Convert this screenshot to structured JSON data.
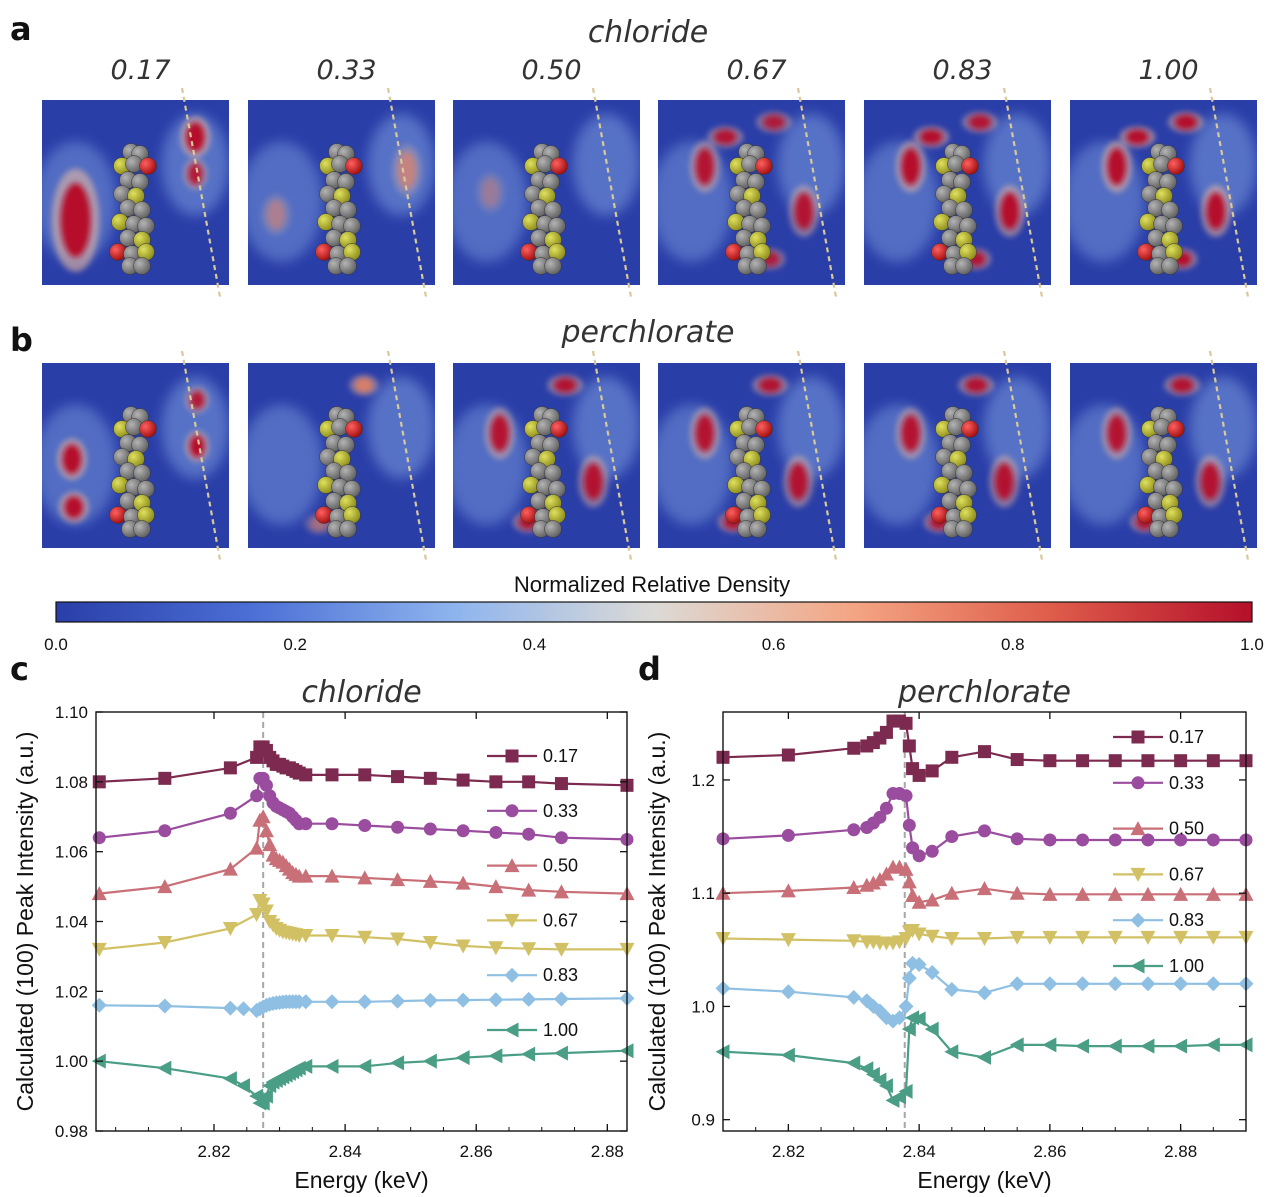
{
  "panel_labels": {
    "a": "a",
    "b": "b",
    "c": "c",
    "d": "d"
  },
  "density_rows": [
    {
      "title": "chloride",
      "columns": [
        "0.17",
        "0.33",
        "0.50",
        "0.67",
        "0.83",
        "1.00"
      ]
    },
    {
      "title": "perchlorate",
      "columns": [
        "0.17",
        "0.33",
        "0.50",
        "0.67",
        "0.83",
        "1.00"
      ]
    }
  ],
  "colorbar": {
    "title": "Normalized Relative Density",
    "ticks": [
      "0.0",
      "0.2",
      "0.4",
      "0.6",
      "0.8",
      "1.0"
    ],
    "colors": [
      "#2a3ea8",
      "#4c70d6",
      "#8eb4ee",
      "#dcdad6",
      "#f4a583",
      "#de5c4a",
      "#b5102a"
    ]
  },
  "molecule_colors": {
    "carbon": "#7a7a7a",
    "sulfur": "#b8b830",
    "oxygen": "#c01818"
  },
  "colors": {
    "map_background": "#2a3ea8",
    "divider": "#d8c89a",
    "series": [
      "#7c2a4f",
      "#9a4c9e",
      "#c96f77",
      "#d2c164",
      "#8fc0e3",
      "#4a9e86"
    ]
  },
  "chart_data": [
    {
      "type": "line",
      "title": "chloride",
      "xlabel": "Energy (keV)",
      "ylabel": "Calculated (100) Peak Intensity (a.u.)",
      "xlim": [
        2.802,
        2.883
      ],
      "ylim": [
        0.98,
        1.1
      ],
      "xticks": [
        "2.82",
        "2.84",
        "2.86",
        "2.88"
      ],
      "yticks": [
        "0.98",
        "1.00",
        "1.02",
        "1.04",
        "1.06",
        "1.08",
        "1.10"
      ],
      "vline": 2.8275,
      "series": [
        {
          "name": "0.17",
          "marker": "square",
          "x": [
            2.8025,
            2.8125,
            2.8225,
            2.8265,
            2.827,
            2.8275,
            2.828,
            2.8285,
            2.829,
            2.8295,
            2.83,
            2.8305,
            2.831,
            2.8315,
            2.832,
            2.8325,
            2.833,
            2.834,
            2.838,
            2.843,
            2.848,
            2.853,
            2.858,
            2.863,
            2.868,
            2.873,
            2.883
          ],
          "y": [
            1.08,
            1.081,
            1.084,
            1.087,
            1.09,
            1.09,
            1.089,
            1.087,
            1.086,
            1.085,
            1.085,
            1.0845,
            1.084,
            1.084,
            1.0835,
            1.083,
            1.0825,
            1.082,
            1.082,
            1.082,
            1.0815,
            1.081,
            1.0805,
            1.08,
            1.08,
            1.0795,
            1.079
          ]
        },
        {
          "name": "0.33",
          "marker": "circle",
          "x": [
            2.8025,
            2.8125,
            2.8225,
            2.8265,
            2.827,
            2.8275,
            2.828,
            2.8285,
            2.829,
            2.8295,
            2.83,
            2.8305,
            2.831,
            2.8315,
            2.832,
            2.8325,
            2.833,
            2.834,
            2.838,
            2.843,
            2.848,
            2.853,
            2.858,
            2.863,
            2.868,
            2.873,
            2.883
          ],
          "y": [
            1.064,
            1.066,
            1.071,
            1.076,
            1.081,
            1.081,
            1.079,
            1.076,
            1.074,
            1.073,
            1.0725,
            1.072,
            1.0715,
            1.071,
            1.07,
            1.069,
            1.068,
            1.068,
            1.068,
            1.0675,
            1.067,
            1.0665,
            1.066,
            1.0655,
            1.065,
            1.064,
            1.0635
          ]
        },
        {
          "name": "0.50",
          "marker": "triangle-up",
          "x": [
            2.8025,
            2.8125,
            2.8225,
            2.8265,
            2.827,
            2.8275,
            2.828,
            2.8285,
            2.829,
            2.8295,
            2.83,
            2.8305,
            2.831,
            2.8315,
            2.832,
            2.8325,
            2.833,
            2.834,
            2.838,
            2.843,
            2.848,
            2.853,
            2.858,
            2.863,
            2.868,
            2.873,
            2.883
          ],
          "y": [
            1.048,
            1.05,
            1.055,
            1.061,
            1.069,
            1.07,
            1.066,
            1.062,
            1.059,
            1.058,
            1.0575,
            1.057,
            1.056,
            1.055,
            1.054,
            1.0535,
            1.053,
            1.053,
            1.053,
            1.0525,
            1.052,
            1.0515,
            1.051,
            1.05,
            1.049,
            1.0485,
            1.048
          ]
        },
        {
          "name": "0.67",
          "marker": "triangle-down",
          "x": [
            2.8025,
            2.8125,
            2.8225,
            2.8265,
            2.827,
            2.8275,
            2.828,
            2.8285,
            2.829,
            2.8295,
            2.83,
            2.8305,
            2.831,
            2.8315,
            2.832,
            2.8325,
            2.833,
            2.834,
            2.838,
            2.843,
            2.848,
            2.853,
            2.858,
            2.863,
            2.868,
            2.873,
            2.883
          ],
          "y": [
            1.032,
            1.034,
            1.038,
            1.042,
            1.046,
            1.045,
            1.043,
            1.04,
            1.039,
            1.038,
            1.0375,
            1.037,
            1.0368,
            1.0366,
            1.0364,
            1.0362,
            1.036,
            1.036,
            1.036,
            1.0355,
            1.035,
            1.034,
            1.033,
            1.0325,
            1.0322,
            1.032,
            1.032
          ]
        },
        {
          "name": "0.83",
          "marker": "diamond",
          "x": [
            2.8025,
            2.8125,
            2.8225,
            2.8245,
            2.8265,
            2.827,
            2.8275,
            2.828,
            2.8285,
            2.829,
            2.8295,
            2.83,
            2.8305,
            2.831,
            2.8315,
            2.832,
            2.8325,
            2.833,
            2.834,
            2.838,
            2.843,
            2.848,
            2.853,
            2.858,
            2.863,
            2.868,
            2.873,
            2.883
          ],
          "y": [
            1.016,
            1.0158,
            1.0152,
            1.015,
            1.0145,
            1.015,
            1.0155,
            1.016,
            1.0163,
            1.0165,
            1.0167,
            1.0168,
            1.0169,
            1.017,
            1.017,
            1.017,
            1.017,
            1.017,
            1.017,
            1.017,
            1.017,
            1.0172,
            1.0174,
            1.0175,
            1.0176,
            1.0177,
            1.0178,
            1.018
          ]
        },
        {
          "name": "1.00",
          "marker": "triangle-left",
          "x": [
            2.8025,
            2.8125,
            2.8225,
            2.8245,
            2.8265,
            2.827,
            2.8275,
            2.828,
            2.8285,
            2.829,
            2.8295,
            2.83,
            2.8305,
            2.831,
            2.8315,
            2.832,
            2.8325,
            2.833,
            2.834,
            2.838,
            2.843,
            2.848,
            2.853,
            2.858,
            2.863,
            2.868,
            2.873,
            2.883
          ],
          "y": [
            1.0,
            0.998,
            0.995,
            0.993,
            0.99,
            0.988,
            0.988,
            0.99,
            0.993,
            0.994,
            0.9945,
            0.995,
            0.9955,
            0.996,
            0.9965,
            0.997,
            0.9975,
            0.998,
            0.9985,
            0.9985,
            0.9985,
            0.9995,
            1.0,
            1.001,
            1.0015,
            1.002,
            1.0023,
            1.003
          ]
        }
      ]
    },
    {
      "type": "line",
      "title": "perchlorate",
      "xlabel": "Energy (keV)",
      "ylabel": "Calculated (100) Peak Intensity (a.u.)",
      "xlim": [
        2.81,
        2.89
      ],
      "ylim": [
        0.89,
        1.26
      ],
      "xticks": [
        "2.82",
        "2.84",
        "2.86",
        "2.88"
      ],
      "yticks": [
        "0.9",
        "1.0",
        "1.1",
        "1.2"
      ],
      "vline": 2.8378,
      "series": [
        {
          "name": "0.17",
          "marker": "square",
          "x": [
            2.81,
            2.82,
            2.83,
            2.832,
            2.833,
            2.834,
            2.835,
            2.836,
            2.837,
            2.838,
            2.8385,
            2.839,
            2.84,
            2.842,
            2.845,
            2.85,
            2.855,
            2.86,
            2.865,
            2.87,
            2.875,
            2.88,
            2.885,
            2.89
          ],
          "y": [
            1.22,
            1.222,
            1.228,
            1.23,
            1.233,
            1.237,
            1.242,
            1.252,
            1.252,
            1.25,
            1.23,
            1.21,
            1.204,
            1.208,
            1.22,
            1.225,
            1.218,
            1.217,
            1.217,
            1.217,
            1.217,
            1.217,
            1.217,
            1.217
          ]
        },
        {
          "name": "0.33",
          "marker": "circle",
          "x": [
            2.81,
            2.82,
            2.83,
            2.832,
            2.833,
            2.834,
            2.835,
            2.836,
            2.837,
            2.838,
            2.8385,
            2.839,
            2.84,
            2.842,
            2.845,
            2.85,
            2.855,
            2.86,
            2.865,
            2.87,
            2.875,
            2.88,
            2.885,
            2.89
          ],
          "y": [
            1.148,
            1.151,
            1.156,
            1.158,
            1.162,
            1.167,
            1.175,
            1.188,
            1.188,
            1.186,
            1.16,
            1.14,
            1.133,
            1.137,
            1.15,
            1.155,
            1.148,
            1.147,
            1.147,
            1.147,
            1.147,
            1.147,
            1.147,
            1.147
          ]
        },
        {
          "name": "0.50",
          "marker": "triangle-up",
          "x": [
            2.81,
            2.82,
            2.83,
            2.832,
            2.833,
            2.834,
            2.835,
            2.836,
            2.837,
            2.838,
            2.8385,
            2.839,
            2.84,
            2.842,
            2.845,
            2.85,
            2.855,
            2.86,
            2.865,
            2.87,
            2.875,
            2.88,
            2.885,
            2.89
          ],
          "y": [
            1.1,
            1.102,
            1.105,
            1.107,
            1.109,
            1.112,
            1.117,
            1.123,
            1.123,
            1.121,
            1.11,
            1.098,
            1.092,
            1.094,
            1.1,
            1.104,
            1.1,
            1.099,
            1.099,
            1.099,
            1.099,
            1.099,
            1.099,
            1.099
          ]
        },
        {
          "name": "0.67",
          "marker": "triangle-down",
          "x": [
            2.81,
            2.82,
            2.83,
            2.832,
            2.833,
            2.834,
            2.835,
            2.836,
            2.837,
            2.838,
            2.8385,
            2.839,
            2.84,
            2.842,
            2.845,
            2.85,
            2.855,
            2.86,
            2.865,
            2.87,
            2.875,
            2.88,
            2.885,
            2.89
          ],
          "y": [
            1.06,
            1.059,
            1.058,
            1.057,
            1.057,
            1.056,
            1.056,
            1.056,
            1.057,
            1.06,
            1.066,
            1.067,
            1.064,
            1.062,
            1.06,
            1.06,
            1.061,
            1.061,
            1.061,
            1.061,
            1.061,
            1.061,
            1.061,
            1.061
          ]
        },
        {
          "name": "0.83",
          "marker": "diamond",
          "x": [
            2.81,
            2.82,
            2.83,
            2.832,
            2.833,
            2.834,
            2.835,
            2.836,
            2.837,
            2.838,
            2.8385,
            2.839,
            2.84,
            2.842,
            2.845,
            2.85,
            2.855,
            2.86,
            2.865,
            2.87,
            2.875,
            2.88,
            2.885,
            2.89
          ],
          "y": [
            1.016,
            1.013,
            1.008,
            1.005,
            1.0,
            0.996,
            0.99,
            0.987,
            0.99,
            1.0,
            1.025,
            1.038,
            1.037,
            1.03,
            1.015,
            1.012,
            1.02,
            1.02,
            1.02,
            1.02,
            1.02,
            1.02,
            1.02,
            1.02
          ]
        },
        {
          "name": "1.00",
          "marker": "triangle-left",
          "x": [
            2.81,
            2.82,
            2.83,
            2.832,
            2.833,
            2.834,
            2.835,
            2.836,
            2.837,
            2.838,
            2.8385,
            2.839,
            2.84,
            2.842,
            2.845,
            2.85,
            2.855,
            2.86,
            2.865,
            2.87,
            2.875,
            2.88,
            2.885,
            2.89
          ],
          "y": [
            0.96,
            0.957,
            0.95,
            0.945,
            0.94,
            0.935,
            0.93,
            0.917,
            0.92,
            0.925,
            0.98,
            0.99,
            0.989,
            0.98,
            0.96,
            0.955,
            0.966,
            0.966,
            0.965,
            0.965,
            0.965,
            0.965,
            0.966,
            0.966
          ]
        }
      ]
    }
  ]
}
